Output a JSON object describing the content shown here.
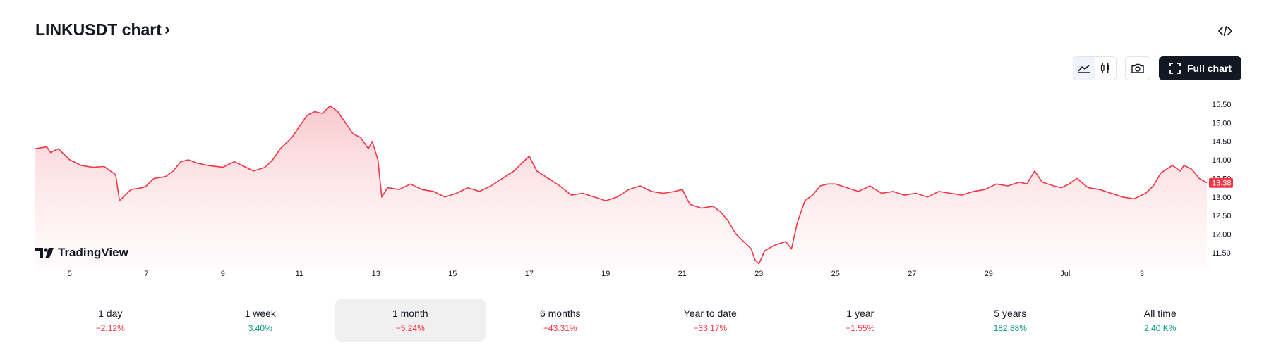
{
  "header": {
    "title": "LINKUSDT chart",
    "chevron": "›",
    "embed_icon": "code-icon"
  },
  "toolbar": {
    "area_icon": "area-chart-icon",
    "candles_icon": "candlestick-icon",
    "camera_icon": "camera-icon",
    "full_chart_label": "Full chart",
    "fullscreen_icon": "fullscreen-icon"
  },
  "branding": {
    "logo_text": "TradingView"
  },
  "colors": {
    "line": "#f23645",
    "fill_top": "#f9c6cb",
    "positive": "#089981",
    "negative": "#f23645",
    "price_tag": "#f23645"
  },
  "periods": [
    {
      "label": "1 day",
      "change": "−2.12%",
      "direction": "neg",
      "active": false
    },
    {
      "label": "1 week",
      "change": "3.40%",
      "direction": "pos",
      "active": false
    },
    {
      "label": "1 month",
      "change": "−5.24%",
      "direction": "neg",
      "active": true
    },
    {
      "label": "6 months",
      "change": "−43.31%",
      "direction": "neg",
      "active": false
    },
    {
      "label": "Year to date",
      "change": "−33.17%",
      "direction": "neg",
      "active": false
    },
    {
      "label": "1 year",
      "change": "−1.55%",
      "direction": "neg",
      "active": false
    },
    {
      "label": "5 years",
      "change": "182.88%",
      "direction": "pos",
      "active": false
    },
    {
      "label": "All time",
      "change": "2.40 K%",
      "direction": "pos",
      "active": false
    }
  ],
  "chart_data": {
    "type": "area",
    "title": "",
    "xlabel": "",
    "ylabel": "",
    "x_ticks": [
      {
        "day": 5,
        "label": "5"
      },
      {
        "day": 7,
        "label": "7"
      },
      {
        "day": 9,
        "label": "9"
      },
      {
        "day": 11,
        "label": "11"
      },
      {
        "day": 13,
        "label": "13"
      },
      {
        "day": 15,
        "label": "15"
      },
      {
        "day": 17,
        "label": "17"
      },
      {
        "day": 19,
        "label": "19"
      },
      {
        "day": 21,
        "label": "21"
      },
      {
        "day": 23,
        "label": "23"
      },
      {
        "day": 25,
        "label": "25"
      },
      {
        "day": 27,
        "label": "27"
      },
      {
        "day": 29,
        "label": "29"
      },
      {
        "day": 31,
        "label": "Jul"
      },
      {
        "day": 33,
        "label": "3"
      }
    ],
    "y_ticks": [
      "15.50",
      "15.00",
      "14.50",
      "14.00",
      "13.50",
      "13.00",
      "12.50",
      "12.00",
      "11.50"
    ],
    "y_tick_values": [
      15.5,
      15.0,
      14.5,
      14.0,
      13.5,
      13.0,
      12.5,
      12.0,
      11.5
    ],
    "xlim": [
      4.1,
      34.7
    ],
    "ylim": [
      11.1,
      15.65
    ],
    "last_price": "13.38",
    "last_value": 13.38,
    "series": [
      {
        "points": [
          [
            4.1,
            14.3
          ],
          [
            4.4,
            14.35
          ],
          [
            4.5,
            14.2
          ],
          [
            4.7,
            14.3
          ],
          [
            5.0,
            14.0
          ],
          [
            5.3,
            13.85
          ],
          [
            5.6,
            13.8
          ],
          [
            5.9,
            13.82
          ],
          [
            6.2,
            13.6
          ],
          [
            6.3,
            12.9
          ],
          [
            6.4,
            13.0
          ],
          [
            6.6,
            13.2
          ],
          [
            6.9,
            13.25
          ],
          [
            7.0,
            13.3
          ],
          [
            7.2,
            13.5
          ],
          [
            7.5,
            13.55
          ],
          [
            7.7,
            13.7
          ],
          [
            7.9,
            13.95
          ],
          [
            8.1,
            14.0
          ],
          [
            8.3,
            13.92
          ],
          [
            8.6,
            13.85
          ],
          [
            9.0,
            13.8
          ],
          [
            9.3,
            13.95
          ],
          [
            9.5,
            13.85
          ],
          [
            9.8,
            13.7
          ],
          [
            10.1,
            13.8
          ],
          [
            10.3,
            14.0
          ],
          [
            10.5,
            14.3
          ],
          [
            10.8,
            14.6
          ],
          [
            11.0,
            14.9
          ],
          [
            11.2,
            15.2
          ],
          [
            11.4,
            15.3
          ],
          [
            11.6,
            15.25
          ],
          [
            11.8,
            15.45
          ],
          [
            12.0,
            15.3
          ],
          [
            12.2,
            15.0
          ],
          [
            12.4,
            14.7
          ],
          [
            12.6,
            14.6
          ],
          [
            12.8,
            14.3
          ],
          [
            12.9,
            14.5
          ],
          [
            13.05,
            14.0
          ],
          [
            13.15,
            13.0
          ],
          [
            13.3,
            13.25
          ],
          [
            13.6,
            13.2
          ],
          [
            13.9,
            13.35
          ],
          [
            14.2,
            13.2
          ],
          [
            14.5,
            13.15
          ],
          [
            14.8,
            13.0
          ],
          [
            15.1,
            13.1
          ],
          [
            15.4,
            13.25
          ],
          [
            15.7,
            13.15
          ],
          [
            16.0,
            13.3
          ],
          [
            16.3,
            13.5
          ],
          [
            16.6,
            13.7
          ],
          [
            16.9,
            14.0
          ],
          [
            17.0,
            14.1
          ],
          [
            17.2,
            13.7
          ],
          [
            17.5,
            13.5
          ],
          [
            17.8,
            13.3
          ],
          [
            18.1,
            13.05
          ],
          [
            18.4,
            13.1
          ],
          [
            18.7,
            13.0
          ],
          [
            19.0,
            12.9
          ],
          [
            19.3,
            13.0
          ],
          [
            19.6,
            13.2
          ],
          [
            19.9,
            13.3
          ],
          [
            20.2,
            13.15
          ],
          [
            20.5,
            13.1
          ],
          [
            20.8,
            13.15
          ],
          [
            21.0,
            13.2
          ],
          [
            21.2,
            12.8
          ],
          [
            21.5,
            12.7
          ],
          [
            21.8,
            12.75
          ],
          [
            22.0,
            12.6
          ],
          [
            22.2,
            12.35
          ],
          [
            22.4,
            12.0
          ],
          [
            22.6,
            11.8
          ],
          [
            22.8,
            11.6
          ],
          [
            22.9,
            11.3
          ],
          [
            23.0,
            11.2
          ],
          [
            23.15,
            11.55
          ],
          [
            23.4,
            11.7
          ],
          [
            23.7,
            11.8
          ],
          [
            23.85,
            11.6
          ],
          [
            24.0,
            12.3
          ],
          [
            24.2,
            12.9
          ],
          [
            24.4,
            13.05
          ],
          [
            24.6,
            13.3
          ],
          [
            24.8,
            13.35
          ],
          [
            25.0,
            13.35
          ],
          [
            25.3,
            13.25
          ],
          [
            25.6,
            13.15
          ],
          [
            25.9,
            13.3
          ],
          [
            26.2,
            13.1
          ],
          [
            26.5,
            13.15
          ],
          [
            26.8,
            13.05
          ],
          [
            27.1,
            13.1
          ],
          [
            27.4,
            13.0
          ],
          [
            27.7,
            13.15
          ],
          [
            28.0,
            13.1
          ],
          [
            28.3,
            13.05
          ],
          [
            28.6,
            13.15
          ],
          [
            28.9,
            13.2
          ],
          [
            29.2,
            13.35
          ],
          [
            29.5,
            13.3
          ],
          [
            29.8,
            13.4
          ],
          [
            30.0,
            13.35
          ],
          [
            30.2,
            13.7
          ],
          [
            30.4,
            13.4
          ],
          [
            30.7,
            13.3
          ],
          [
            30.9,
            13.25
          ],
          [
            31.1,
            13.35
          ],
          [
            31.3,
            13.5
          ],
          [
            31.6,
            13.25
          ],
          [
            31.9,
            13.2
          ],
          [
            32.2,
            13.1
          ],
          [
            32.5,
            13.0
          ],
          [
            32.8,
            12.95
          ],
          [
            33.1,
            13.1
          ],
          [
            33.3,
            13.3
          ],
          [
            33.5,
            13.65
          ],
          [
            33.8,
            13.85
          ],
          [
            34.0,
            13.7
          ],
          [
            34.1,
            13.85
          ],
          [
            34.3,
            13.75
          ],
          [
            34.5,
            13.5
          ],
          [
            34.7,
            13.38
          ]
        ]
      }
    ],
    "grid": false,
    "legend": "none"
  }
}
